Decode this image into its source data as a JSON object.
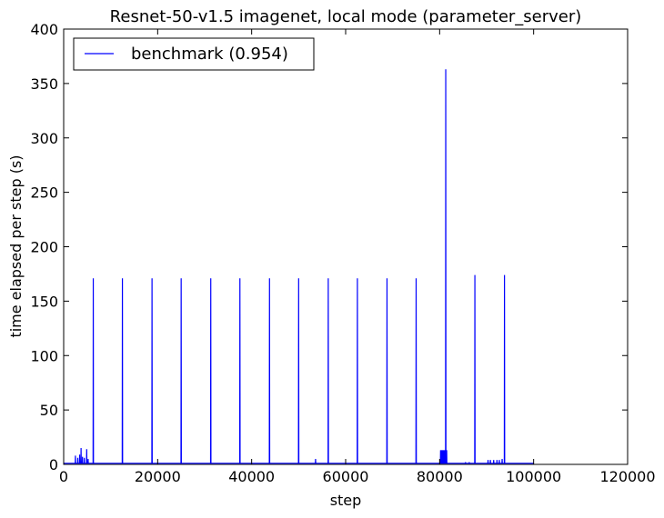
{
  "chart_data": {
    "type": "line",
    "title": "Resnet-50-v1.5 imagenet, local mode (parameter_server)",
    "xlabel": "step",
    "ylabel": "time elapsed per step (s)",
    "xlim": [
      0,
      120000
    ],
    "ylim": [
      0,
      400
    ],
    "xticks": [
      0,
      20000,
      40000,
      60000,
      80000,
      100000,
      120000
    ],
    "yticks": [
      0,
      50,
      100,
      150,
      200,
      250,
      300,
      350,
      400
    ],
    "legend_placement": "top-left",
    "series": [
      {
        "name": "benchmark (0.954)",
        "color": "#0000ff",
        "baseline": 1,
        "spikes": [
          [
            2500,
            8
          ],
          [
            3000,
            6
          ],
          [
            3400,
            9
          ],
          [
            3700,
            15
          ],
          [
            4000,
            7
          ],
          [
            4400,
            6
          ],
          [
            4900,
            14
          ],
          [
            5200,
            5
          ],
          [
            6300,
            171
          ],
          [
            12500,
            171
          ],
          [
            18800,
            171
          ],
          [
            25000,
            171
          ],
          [
            31300,
            171
          ],
          [
            37500,
            171
          ],
          [
            43800,
            171
          ],
          [
            50000,
            171
          ],
          [
            53600,
            5
          ],
          [
            56300,
            171
          ],
          [
            62500,
            171
          ],
          [
            68800,
            171
          ],
          [
            75000,
            171
          ],
          [
            80200,
            13
          ],
          [
            80400,
            13
          ],
          [
            80600,
            13
          ],
          [
            80800,
            13
          ],
          [
            81000,
            13
          ],
          [
            81200,
            13
          ],
          [
            81300,
            363
          ],
          [
            81500,
            13
          ],
          [
            85500,
            2
          ],
          [
            86300,
            2
          ],
          [
            87500,
            174
          ],
          [
            90300,
            4
          ],
          [
            90800,
            4
          ],
          [
            91500,
            4
          ],
          [
            92200,
            4
          ],
          [
            92700,
            4
          ],
          [
            93300,
            5
          ],
          [
            93800,
            174
          ]
        ],
        "end_step": 100000
      }
    ]
  }
}
